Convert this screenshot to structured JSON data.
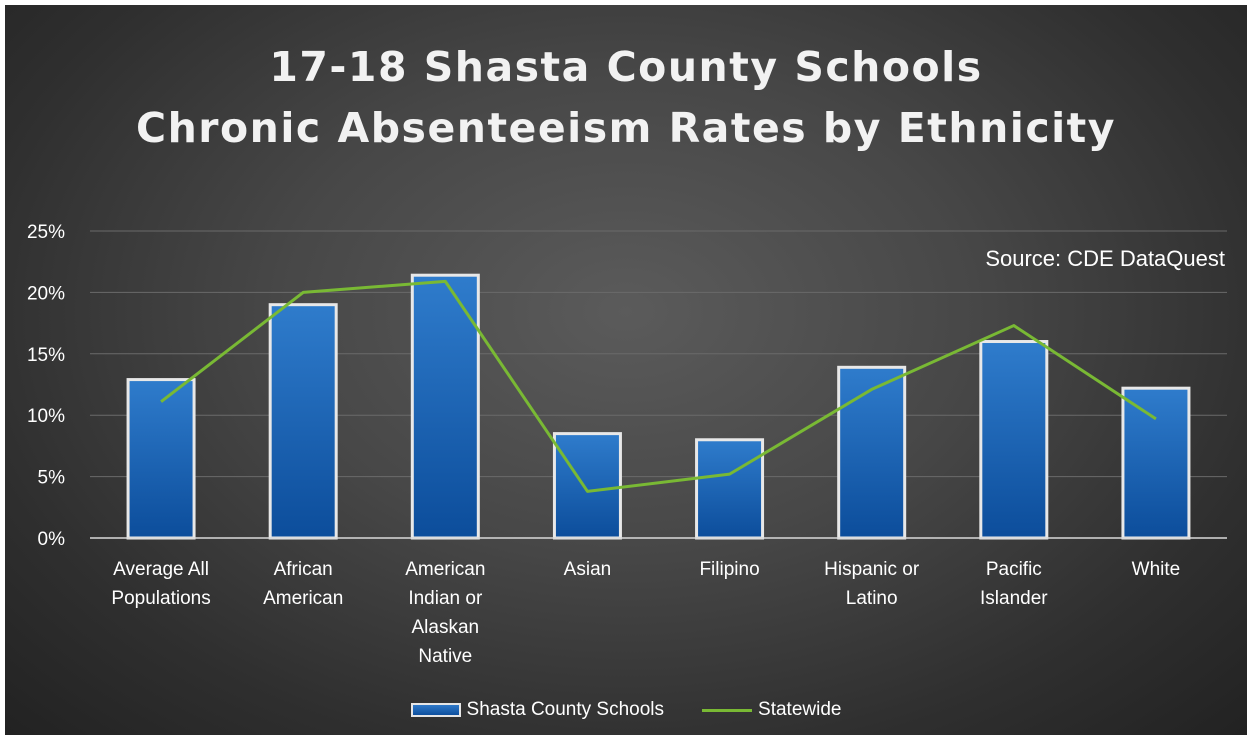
{
  "chart_data": {
    "type": "bar",
    "title": [
      "17-18 Shasta County Schools",
      "Chronic Absenteeism Rates by Ethnicity"
    ],
    "annotation": "Source:  CDE DataQuest",
    "categories": [
      [
        "Average All",
        "Populations"
      ],
      [
        "African",
        "American"
      ],
      [
        "American",
        "Indian or",
        "Alaskan",
        "Native"
      ],
      [
        "Asian"
      ],
      [
        "Filipino"
      ],
      [
        "Hispanic or",
        "Latino"
      ],
      [
        "Pacific",
        "Islander"
      ],
      [
        "White"
      ]
    ],
    "series": [
      {
        "name": "Shasta County Schools",
        "type": "bar",
        "color": "#1460b0",
        "values": [
          12.9,
          19.0,
          21.4,
          8.5,
          8.0,
          13.9,
          16.0,
          12.2
        ]
      },
      {
        "name": "Statewide",
        "type": "line",
        "color": "#79b934",
        "values": [
          11.1,
          20.0,
          20.9,
          3.8,
          5.2,
          12.1,
          17.3,
          9.7
        ]
      }
    ],
    "yticks": [
      "0%",
      "5%",
      "10%",
      "15%",
      "20%",
      "25%"
    ],
    "ylim": [
      0,
      25
    ],
    "grid": true,
    "legend_position": "bottom"
  }
}
